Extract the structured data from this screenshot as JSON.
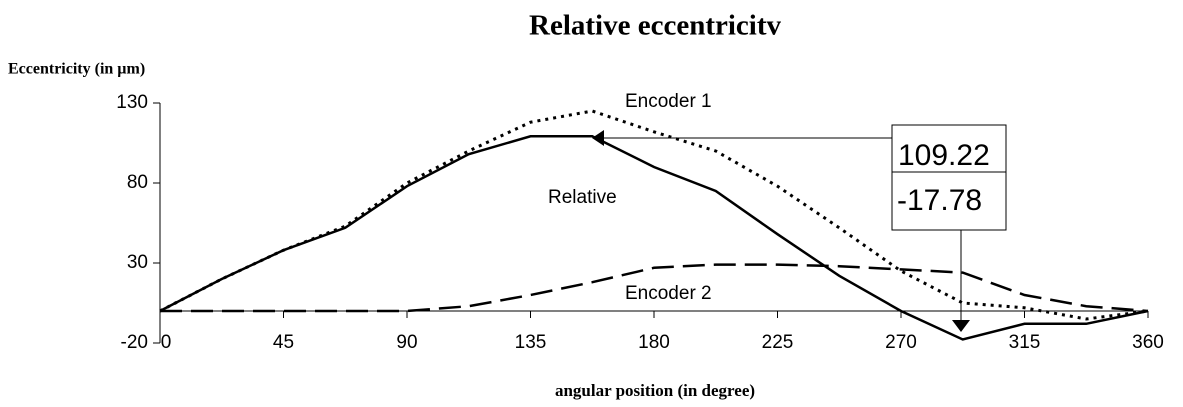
{
  "chart_data": {
    "type": "line",
    "title": "Relative eccentricitv",
    "y_label": "Eccentricity (in µm)",
    "x_label": "angular position (in degree)",
    "x": [
      0,
      22.5,
      45,
      67.5,
      90,
      112.5,
      135,
      157.5,
      180,
      202.5,
      225,
      247.5,
      270,
      292.5,
      315,
      337.5,
      360
    ],
    "series": [
      {
        "name": "Relative",
        "color": "#000000",
        "line_style": "solid",
        "values": [
          0,
          20,
          38,
          52,
          78,
          98,
          109.22,
          109.22,
          90,
          75,
          48,
          22,
          0,
          -17.78,
          -8,
          -8,
          0
        ]
      },
      {
        "name": "Encoder 1",
        "color": "#000000",
        "line_style": "dotted",
        "values": [
          0,
          20,
          38,
          53,
          80,
          100,
          118,
          125,
          112,
          100,
          78,
          52,
          25,
          5,
          2,
          -5,
          0
        ]
      },
      {
        "name": "Encoder 2",
        "color": "#000000",
        "line_style": "dashed",
        "values": [
          0,
          0,
          0,
          0,
          0,
          3,
          10,
          18,
          27,
          29,
          29,
          28,
          26,
          24,
          10,
          3,
          0
        ]
      }
    ],
    "annotations": [
      "109.22",
      "-17.78"
    ],
    "xlim": [
      0,
      360
    ],
    "xticks": [
      0,
      45,
      90,
      135,
      180,
      225,
      270,
      315,
      360
    ],
    "ylim": [
      -20,
      130
    ],
    "yticks": [
      -20,
      30,
      80,
      130
    ],
    "grid": false
  }
}
